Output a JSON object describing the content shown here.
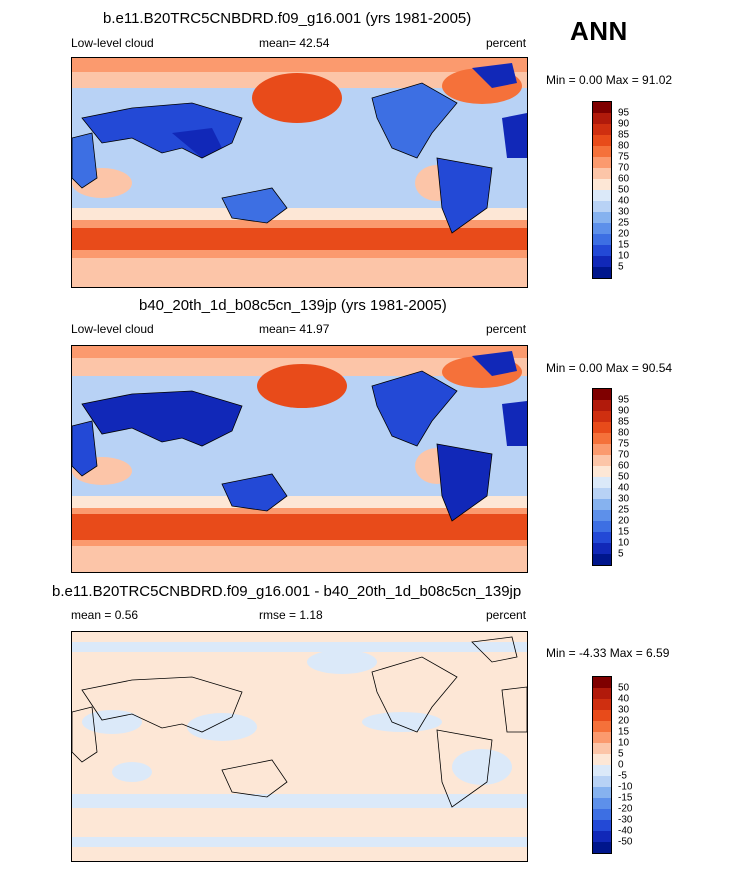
{
  "season": "ANN",
  "variable": "Low-level cloud",
  "units": "percent",
  "panels": [
    {
      "title": "b.e11.B20TRC5CNBDRD.f09_g16.001 (yrs 1981-2005)",
      "left_stat": "Low-level cloud",
      "center_stat": "mean=  42.54",
      "right_stat": "percent",
      "minmax": "Min =   0.00 Max =  91.02",
      "levels": [
        "95",
        "90",
        "85",
        "80",
        "75",
        "70",
        "60",
        "50",
        "40",
        "30",
        "25",
        "20",
        "15",
        "10",
        "5"
      ],
      "colors": [
        "#7f0000",
        "#b11a0b",
        "#cf2f10",
        "#e84b1a",
        "#f5713a",
        "#fb9a6e",
        "#fcc5a8",
        "#fde7d6",
        "#dbe9f9",
        "#b8d2f5",
        "#86b2ef",
        "#5d90ea",
        "#3d6fe3",
        "#2349d6",
        "#1128b8",
        "#00168c"
      ]
    },
    {
      "title": "b40_20th_1d_b08c5cn_139jp (yrs 1981-2005)",
      "left_stat": "Low-level cloud",
      "center_stat": "mean=  41.97",
      "right_stat": "percent",
      "minmax": "Min =   0.00 Max =  90.54",
      "levels": [
        "95",
        "90",
        "85",
        "80",
        "75",
        "70",
        "60",
        "50",
        "40",
        "30",
        "25",
        "20",
        "15",
        "10",
        "5"
      ],
      "colors": [
        "#7f0000",
        "#b11a0b",
        "#cf2f10",
        "#e84b1a",
        "#f5713a",
        "#fb9a6e",
        "#fcc5a8",
        "#fde7d6",
        "#dbe9f9",
        "#b8d2f5",
        "#86b2ef",
        "#5d90ea",
        "#3d6fe3",
        "#2349d6",
        "#1128b8",
        "#00168c"
      ]
    },
    {
      "title": "b.e11.B20TRC5CNBDRD.f09_g16.001 - b40_20th_1d_b08c5cn_139jp",
      "left_stat": "mean =   0.56",
      "center_stat": "rmse =   1.18",
      "right_stat": "percent",
      "minmax": "Min =  -4.33 Max =   6.59",
      "levels": [
        "50",
        "40",
        "30",
        "20",
        "15",
        "10",
        "5",
        "0",
        "-5",
        "-10",
        "-15",
        "-20",
        "-30",
        "-40",
        "-50"
      ],
      "colors": [
        "#7f0000",
        "#b11a0b",
        "#cf2f10",
        "#e84b1a",
        "#f5713a",
        "#fb9a6e",
        "#fcc5a8",
        "#fde7d6",
        "#dbe9f9",
        "#b8d2f5",
        "#86b2ef",
        "#5d90ea",
        "#3d6fe3",
        "#2349d6",
        "#1128b8",
        "#00168c"
      ]
    }
  ]
}
